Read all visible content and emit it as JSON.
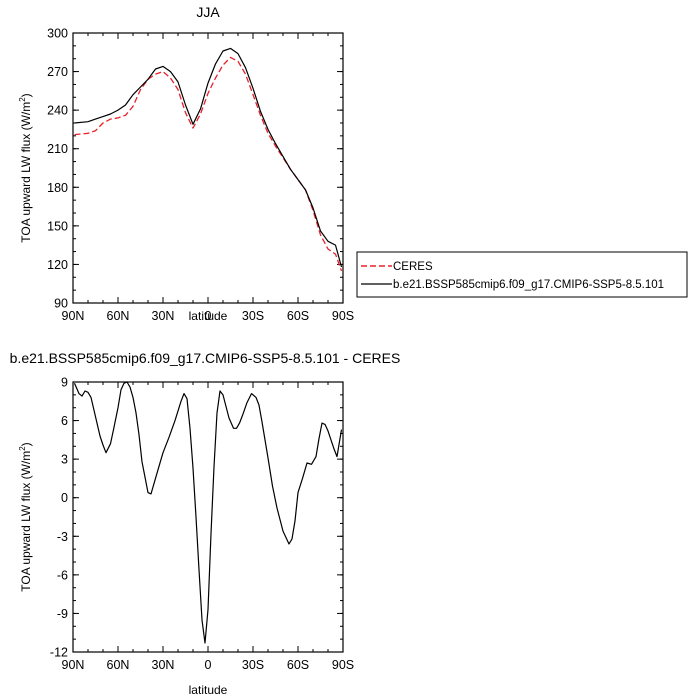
{
  "chart_data": [
    {
      "type": "line",
      "title": "JJA",
      "xlabel": "latitude",
      "ylabel_main": "TOA upward LW flux (W/m",
      "ylabel_sup": "2",
      "ylabel_tail": ")",
      "xlim": [
        90,
        -90
      ],
      "ylim": [
        90,
        300
      ],
      "x_ticks": [
        90,
        60,
        30,
        0,
        -30,
        -60,
        -90
      ],
      "x_tick_labels": [
        "90N",
        "60N",
        "30N",
        "0",
        "30S",
        "60S",
        "90S"
      ],
      "y_ticks": [
        90,
        120,
        150,
        180,
        210,
        240,
        270,
        300
      ],
      "y_tick_labels": [
        "90",
        "120",
        "150",
        "180",
        "210",
        "240",
        "270",
        "300"
      ],
      "legend": "right",
      "grid": false,
      "series": [
        {
          "name": "CERES",
          "color": "#e8202a",
          "dash": true,
          "x": [
            89,
            80,
            75,
            70,
            65,
            60,
            55,
            50,
            45,
            40,
            35,
            30,
            25,
            20,
            15,
            10,
            5,
            0,
            -5,
            -10,
            -15,
            -20,
            -25,
            -30,
            -35,
            -40,
            -45,
            -50,
            -55,
            -60,
            -65,
            -70,
            -75,
            -80,
            -85,
            -89
          ],
          "y": [
            221,
            222,
            224,
            230,
            233,
            234,
            236,
            243,
            256,
            264,
            268,
            270,
            265,
            256,
            238,
            226,
            237,
            253,
            265,
            275,
            281,
            278,
            268,
            252,
            236,
            222,
            212,
            203,
            194,
            186,
            178,
            162,
            143,
            132,
            128,
            115
          ]
        },
        {
          "name": "b.e21.BSSP585cmip6.f09_g17.CMIP6-SSP5-8.5.101",
          "color": "#000000",
          "dash": false,
          "x": [
            89,
            80,
            75,
            70,
            65,
            60,
            55,
            50,
            45,
            40,
            35,
            30,
            25,
            20,
            15,
            10,
            5,
            0,
            -5,
            -10,
            -15,
            -20,
            -25,
            -30,
            -35,
            -40,
            -45,
            -50,
            -55,
            -60,
            -65,
            -70,
            -75,
            -80,
            -85,
            -89
          ],
          "y": [
            230,
            231,
            233,
            235,
            237,
            240,
            244,
            252,
            258,
            264,
            272,
            274,
            270,
            262,
            244,
            229,
            241,
            261,
            276,
            286,
            288,
            284,
            273,
            257,
            239,
            225,
            214,
            204,
            194,
            186,
            178,
            164,
            146,
            138,
            135,
            118
          ]
        }
      ]
    },
    {
      "type": "line",
      "title": "b.e21.BSSP585cmip6.f09_g17.CMIP6-SSP5-8.5.101 - CERES",
      "xlabel": "latitude",
      "ylabel_main": "TOA upward LW flux (W/m",
      "ylabel_sup": "2",
      "ylabel_tail": ")",
      "xlim": [
        90,
        -90
      ],
      "ylim": [
        -12,
        9
      ],
      "x_ticks": [
        90,
        60,
        30,
        0,
        -30,
        -60,
        -90
      ],
      "x_tick_labels": [
        "90N",
        "60N",
        "30N",
        "0",
        "30S",
        "60S",
        "90S"
      ],
      "y_ticks": [
        -12,
        -9,
        -6,
        -3,
        0,
        3,
        6,
        9
      ],
      "y_tick_labels": [
        "-12",
        "-9",
        "-6",
        "-3",
        "0",
        "3",
        "6",
        "9"
      ],
      "grid": false,
      "series": [
        {
          "color": "#000000",
          "x": [
            89,
            86,
            84,
            82,
            80,
            78,
            76,
            74,
            72,
            70,
            68,
            65,
            63,
            60,
            58,
            56,
            54,
            52,
            50,
            48,
            46,
            44,
            42,
            40,
            38,
            36,
            33,
            30,
            26,
            22,
            18,
            16,
            14,
            12,
            10,
            8,
            6,
            4,
            2,
            0,
            -2,
            -4,
            -6,
            -8,
            -10,
            -14,
            -17,
            -19,
            -21,
            -23,
            -26,
            -29,
            -32,
            -34,
            -36,
            -38,
            -40,
            -43,
            -46,
            -50,
            -54,
            -56,
            -58,
            -60,
            -63,
            -66,
            -69,
            -72,
            -74,
            -76,
            -78,
            -80,
            -82,
            -84,
            -86,
            -88,
            -89
          ],
          "y": [
            8.9,
            8.1,
            7.9,
            8.3,
            8.2,
            7.8,
            6.8,
            5.8,
            4.8,
            4.1,
            3.5,
            4.2,
            5.3,
            7.0,
            8.4,
            8.9,
            9.0,
            8.6,
            7.8,
            6.6,
            4.9,
            2.8,
            1.6,
            0.4,
            0.3,
            1.1,
            2.3,
            3.5,
            4.7,
            6.0,
            7.5,
            8.1,
            7.7,
            5.4,
            2.3,
            -1.5,
            -5.6,
            -9.5,
            -11.3,
            -8.7,
            -2.8,
            2.4,
            6.6,
            8.3,
            8.0,
            6.2,
            5.4,
            5.4,
            5.8,
            6.4,
            7.4,
            8.1,
            7.8,
            7.2,
            5.9,
            4.5,
            3.1,
            0.9,
            -0.8,
            -2.6,
            -3.6,
            -3.2,
            -1.8,
            0.4,
            1.5,
            2.7,
            2.6,
            3.2,
            4.6,
            5.8,
            5.7,
            5.2,
            4.5,
            3.8,
            3.2,
            4.6,
            5.3
          ]
        }
      ]
    }
  ]
}
